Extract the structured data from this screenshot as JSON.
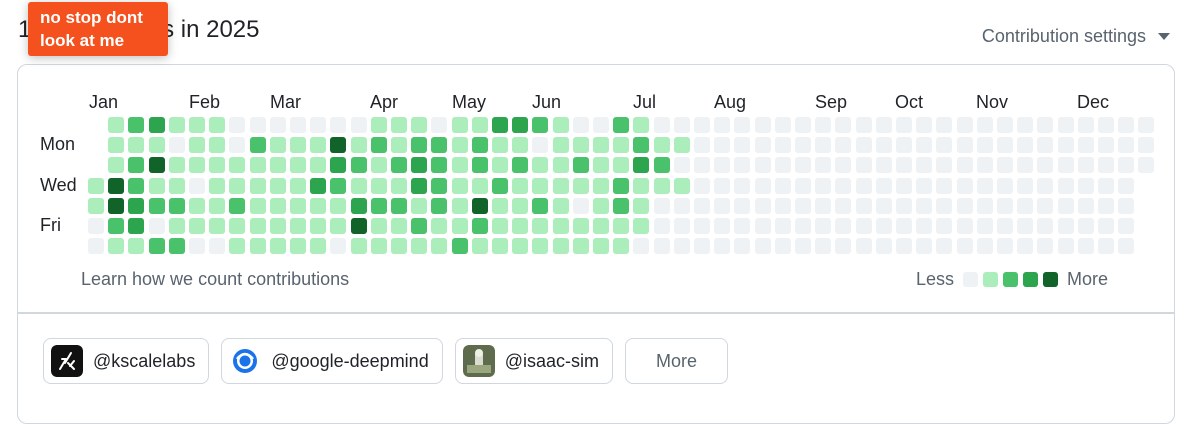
{
  "heading": "1 contributions in 2025",
  "settings_label": "Contribution settings",
  "sticker": {
    "line1": "no stop dont",
    "line2": "look at me"
  },
  "months": [
    "Jan",
    "Feb",
    "Mar",
    "Apr",
    "May",
    "Jun",
    "Jul",
    "Aug",
    "Sep",
    "Oct",
    "Nov",
    "Dec"
  ],
  "days": [
    "Mon",
    "Wed",
    "Fri"
  ],
  "learn_link": "Learn how we count contributions",
  "legend": {
    "less": "Less",
    "more": "More",
    "colors": [
      "#eff2f5",
      "#aceebb",
      "#4ac26b",
      "#2da44e",
      "#116329"
    ]
  },
  "organizations": [
    "@kscalelabs",
    "@google-deepmind",
    "@isaac-sim"
  ],
  "more_button": "More",
  "contribution_levels": [
    [
      0,
      1,
      2,
      3,
      1,
      1,
      1,
      0,
      0,
      0,
      0,
      0,
      0,
      0,
      1,
      1,
      1,
      0,
      1,
      1,
      3,
      3,
      2,
      1,
      0,
      0,
      2,
      1,
      0,
      0,
      0,
      0,
      0,
      0,
      0,
      0,
      0,
      0,
      0,
      0,
      0,
      0,
      0,
      0,
      0,
      0,
      0,
      0,
      0,
      0,
      0,
      0,
      0
    ],
    [
      0,
      1,
      1,
      1,
      0,
      1,
      1,
      0,
      2,
      1,
      1,
      1,
      4,
      1,
      2,
      1,
      2,
      2,
      1,
      2,
      1,
      1,
      0,
      1,
      1,
      1,
      1,
      2,
      1,
      1,
      0,
      0,
      0,
      0,
      0,
      0,
      0,
      0,
      0,
      0,
      0,
      0,
      0,
      0,
      0,
      0,
      0,
      0,
      0,
      0,
      0,
      0,
      0
    ],
    [
      0,
      1,
      2,
      4,
      1,
      1,
      1,
      1,
      1,
      1,
      1,
      1,
      3,
      2,
      1,
      2,
      3,
      2,
      1,
      2,
      1,
      2,
      1,
      1,
      2,
      1,
      1,
      3,
      2,
      0,
      0,
      0,
      0,
      0,
      0,
      0,
      0,
      0,
      0,
      0,
      0,
      0,
      0,
      0,
      0,
      0,
      0,
      0,
      0,
      0,
      0,
      0,
      0
    ],
    [
      1,
      4,
      2,
      1,
      1,
      0,
      1,
      1,
      1,
      1,
      1,
      3,
      2,
      1,
      1,
      1,
      3,
      2,
      1,
      1,
      2,
      1,
      1,
      1,
      1,
      1,
      2,
      1,
      1,
      1,
      0,
      0,
      0,
      0,
      0,
      0,
      0,
      0,
      0,
      0,
      0,
      0,
      0,
      0,
      0,
      0,
      0,
      0,
      0,
      0,
      0,
      0,
      0
    ],
    [
      1,
      4,
      3,
      2,
      2,
      1,
      1,
      2,
      1,
      1,
      1,
      1,
      1,
      3,
      2,
      2,
      1,
      2,
      1,
      4,
      1,
      1,
      2,
      1,
      0,
      1,
      2,
      1,
      0,
      0,
      0,
      0,
      0,
      0,
      0,
      0,
      0,
      0,
      0,
      0,
      0,
      0,
      0,
      0,
      0,
      0,
      0,
      0,
      0,
      0,
      0,
      0,
      0
    ],
    [
      0,
      2,
      3,
      0,
      1,
      1,
      1,
      1,
      1,
      1,
      1,
      1,
      1,
      4,
      1,
      1,
      2,
      1,
      1,
      2,
      1,
      1,
      1,
      1,
      1,
      1,
      1,
      1,
      0,
      0,
      0,
      0,
      0,
      0,
      0,
      0,
      0,
      0,
      0,
      0,
      0,
      0,
      0,
      0,
      0,
      0,
      0,
      0,
      0,
      0,
      0,
      0,
      0
    ],
    [
      0,
      1,
      1,
      2,
      2,
      0,
      0,
      1,
      1,
      1,
      1,
      1,
      0,
      1,
      1,
      1,
      1,
      1,
      2,
      1,
      1,
      1,
      1,
      1,
      1,
      1,
      1,
      0,
      0,
      0,
      0,
      0,
      0,
      0,
      0,
      0,
      0,
      0,
      0,
      0,
      0,
      0,
      0,
      0,
      0,
      0,
      0,
      0,
      0,
      0,
      0,
      0,
      0
    ]
  ]
}
